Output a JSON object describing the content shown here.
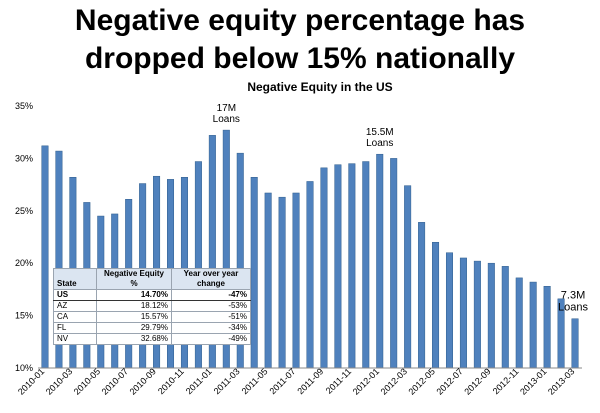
{
  "headline": {
    "line1": "Negative equity percentage has",
    "line2": "dropped below 15% nationally"
  },
  "chart_data": {
    "type": "bar",
    "title": "Negative Equity in the US",
    "xlabel": "",
    "ylabel": "",
    "ylim": [
      10,
      35
    ],
    "yticks": [
      "10%",
      "15%",
      "20%",
      "25%",
      "30%",
      "35%"
    ],
    "grid": false,
    "bar_color": "#4f81bd",
    "categories": [
      "2010-01",
      "2010-02",
      "2010-03",
      "2010-04",
      "2010-05",
      "2010-06",
      "2010-07",
      "2010-08",
      "2010-09",
      "2010-10",
      "2010-11",
      "2010-12",
      "2011-01",
      "2011-02",
      "2011-03",
      "2011-04",
      "2011-05",
      "2011-06",
      "2011-07",
      "2011-08",
      "2011-09",
      "2011-10",
      "2011-11",
      "2011-12",
      "2012-01",
      "2012-02",
      "2012-03",
      "2012-04",
      "2012-05",
      "2012-06",
      "2012-07",
      "2012-08",
      "2012-09",
      "2012-10",
      "2012-11",
      "2012-12",
      "2013-01",
      "2013-02",
      "2013-03"
    ],
    "tick_labels": [
      "2010-01",
      "2010-03",
      "2010-05",
      "2010-07",
      "2010-09",
      "2010-11",
      "2011-01",
      "2011-03",
      "2011-05",
      "2011-07",
      "2011-09",
      "2011-11",
      "2012-01",
      "2012-03",
      "2012-05",
      "2012-07",
      "2012-09",
      "2012-11",
      "2013-01",
      "2013-03"
    ],
    "values": [
      31.2,
      30.7,
      28.2,
      25.8,
      24.5,
      24.7,
      26.1,
      27.6,
      28.3,
      28.0,
      28.2,
      29.7,
      32.2,
      32.7,
      30.5,
      28.2,
      26.7,
      26.3,
      26.7,
      27.8,
      29.1,
      29.4,
      29.5,
      29.7,
      30.4,
      30.0,
      27.4,
      23.9,
      22.0,
      21.0,
      20.5,
      20.2,
      20.0,
      19.7,
      18.6,
      18.2,
      17.8,
      16.6,
      14.7
    ],
    "annotations": [
      {
        "lines": [
          "17M",
          "Loans"
        ],
        "category": "2011-02"
      },
      {
        "lines": [
          "15.5M",
          "Loans"
        ],
        "category": "2012-01"
      },
      {
        "lines": [
          "7.3M",
          "Loans"
        ],
        "category": "2013-03"
      }
    ]
  },
  "table": {
    "headers": {
      "state": "State",
      "neg_equity_line1": "Negative Equity",
      "neg_equity_line2": "%",
      "yoy_line1": "Year over year",
      "yoy_line2": "change"
    },
    "rows": [
      {
        "state": "US",
        "neg_equity": "14.70%",
        "yoy": "-47%"
      },
      {
        "state": "AZ",
        "neg_equity": "18.12%",
        "yoy": "-53%"
      },
      {
        "state": "CA",
        "neg_equity": "15.57%",
        "yoy": "-51%"
      },
      {
        "state": "FL",
        "neg_equity": "29.79%",
        "yoy": "-34%"
      },
      {
        "state": "NV",
        "neg_equity": "32.68%",
        "yoy": "-49%"
      }
    ]
  }
}
